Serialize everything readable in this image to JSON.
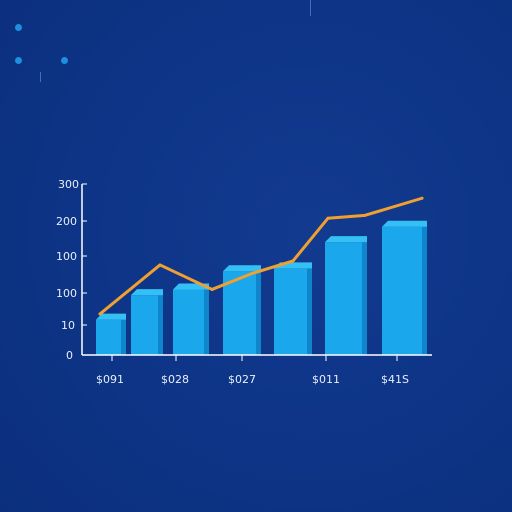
{
  "colors": {
    "background": "#0d3486",
    "bar_front": "#1aa7ec",
    "bar_top": "#35c0f5",
    "bar_side": "#0f86cc",
    "line": "#f0a030",
    "axis": "#ffffff",
    "text": "#e8eefc"
  },
  "icons": {
    "dot_top": "dot-icon",
    "dot_left": "dot-icon",
    "dot_right": "dot-icon"
  },
  "chart_data": {
    "type": "bar",
    "combined_with": "line",
    "y_tick_labels": [
      "0",
      "10",
      "100",
      "100",
      "200",
      "300"
    ],
    "x_tick_labels": [
      "$091",
      "$028",
      "$027",
      "$011",
      "$41S"
    ],
    "bars": {
      "values": [
        62,
        105,
        115,
        147,
        152,
        198,
        225
      ],
      "unit_scale": "approx, read from gridlines"
    },
    "line": {
      "values": [
        72,
        158,
        115,
        143,
        165,
        240,
        245,
        275
      ]
    },
    "ylim": [
      0,
      300
    ],
    "grid": false,
    "legend": "none",
    "title": "",
    "xlabel": "",
    "ylabel": ""
  }
}
